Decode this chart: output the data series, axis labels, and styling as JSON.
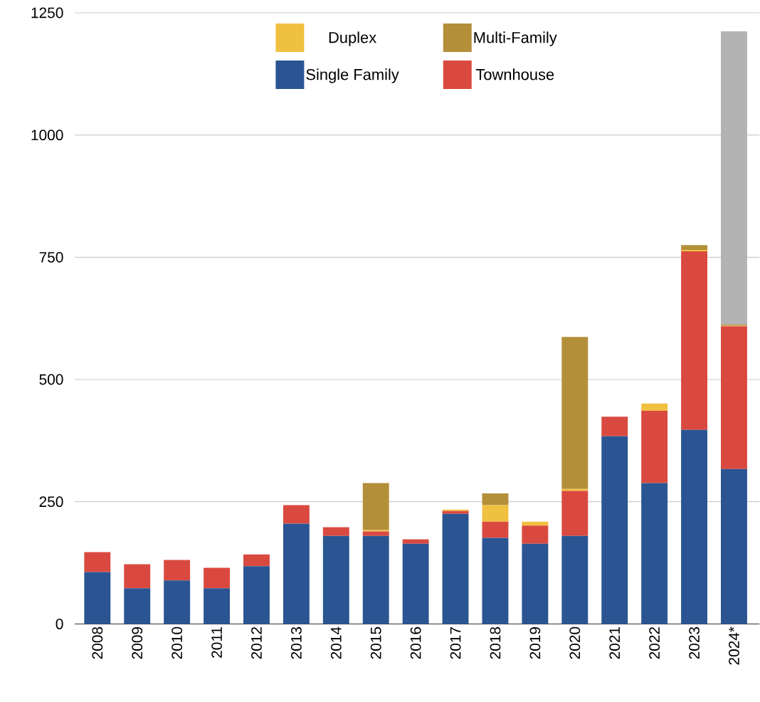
{
  "chart_data": {
    "type": "bar",
    "stacked": true,
    "categories": [
      "2008",
      "2009",
      "2010",
      "2011",
      "2012",
      "2013",
      "2014",
      "2015",
      "2016",
      "2017",
      "2018",
      "2019",
      "2020",
      "2021",
      "2022",
      "2023",
      "2024*"
    ],
    "series": [
      {
        "name": "Single Family",
        "color": "#2a5592",
        "values": [
          106,
          73,
          89,
          73,
          118,
          205,
          180,
          180,
          164,
          225,
          176,
          164,
          180,
          384,
          288,
          397,
          317
        ]
      },
      {
        "name": "Townhouse",
        "color": "#da4940",
        "values": [
          41,
          49,
          42,
          42,
          24,
          38,
          18,
          9,
          9,
          6,
          33,
          37,
          92,
          40,
          148,
          365,
          292
        ]
      },
      {
        "name": "Duplex",
        "color": "#f0c040",
        "values": [
          0,
          0,
          0,
          0,
          0,
          0,
          0,
          3,
          0,
          3,
          34,
          8,
          4,
          0,
          15,
          3,
          1
        ]
      },
      {
        "name": "Multi-Family",
        "color": "#b38f3a",
        "values": [
          0,
          0,
          0,
          0,
          0,
          0,
          0,
          96,
          0,
          0,
          24,
          0,
          311,
          0,
          0,
          10,
          2
        ]
      },
      {
        "color": "#b3b3b3",
        "values": [
          0,
          0,
          0,
          0,
          0,
          0,
          0,
          0,
          0,
          0,
          0,
          0,
          0,
          0,
          0,
          0,
          600
        ]
      }
    ],
    "ylim": [
      0,
      1250
    ],
    "yticks": [
      0,
      250,
      500,
      750,
      1000,
      1250
    ],
    "grid": "y",
    "legend": "top"
  }
}
